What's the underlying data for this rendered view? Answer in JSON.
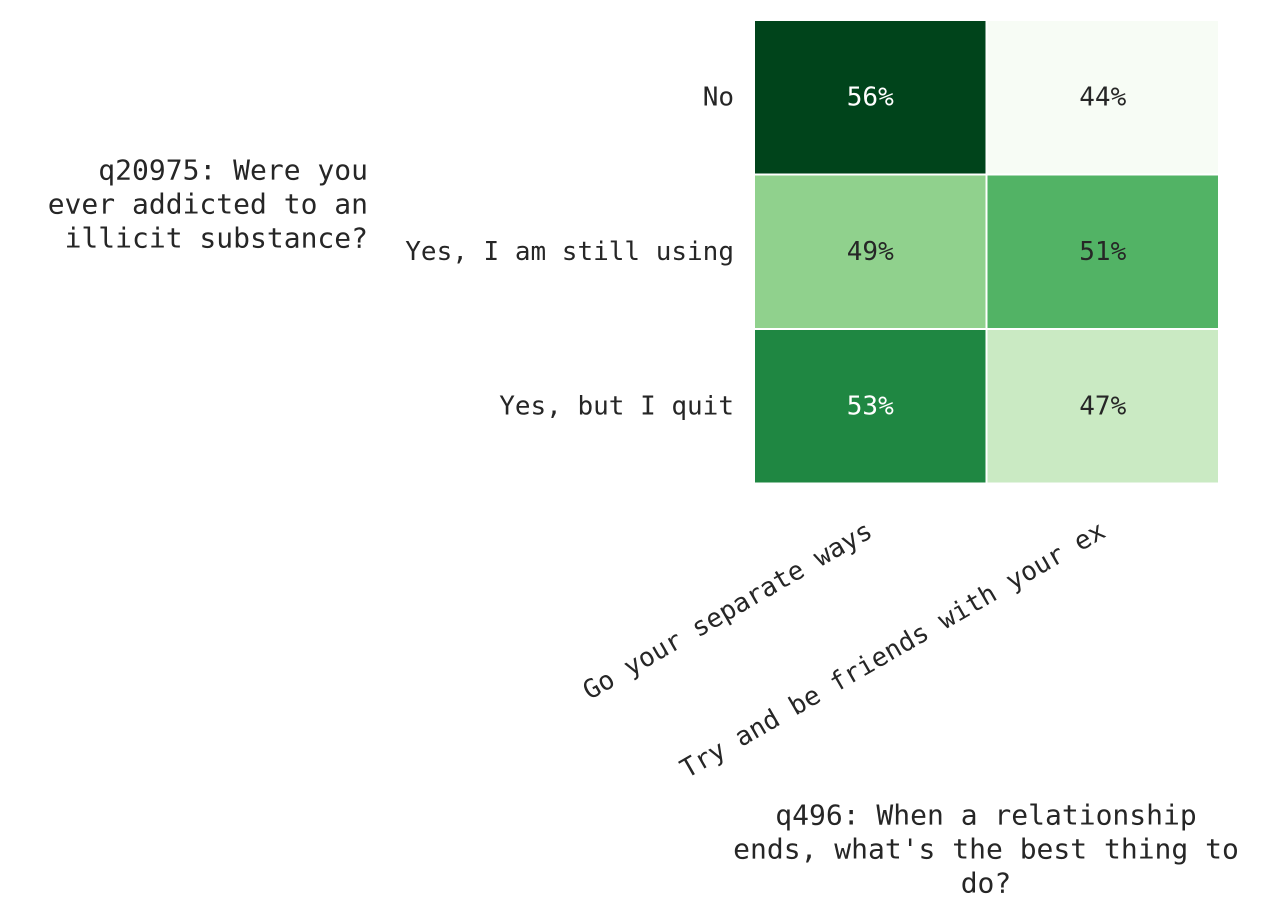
{
  "chart_data": {
    "type": "heatmap",
    "title": "",
    "xlabel": "q496: When a relationship ends, what's the best thing to do?",
    "xlabel_lines": [
      "q496: When a relationship",
      "ends, what's the best thing to",
      "do?"
    ],
    "ylabel": "q20975: Were you ever addicted to an illicit substance?",
    "ylabel_lines": [
      "q20975: Were you",
      "ever addicted to an",
      "illicit substance?"
    ],
    "x_categories": [
      "Go your separate ways",
      "Try and be friends with your ex"
    ],
    "y_categories": [
      "No",
      "Yes, I am still using",
      "Yes, but I quit"
    ],
    "values": [
      [
        56,
        44
      ],
      [
        49,
        51
      ],
      [
        53,
        47
      ]
    ],
    "cell_labels": [
      [
        "56%",
        "44%"
      ],
      [
        "49%",
        "51%"
      ],
      [
        "53%",
        "47%"
      ]
    ],
    "value_unit": "%",
    "colormap": "Greens",
    "colors": [
      [
        "#00441b",
        "#f7fcf5"
      ],
      [
        "#90d18d",
        "#52b365"
      ],
      [
        "#1f8742",
        "#caeac3"
      ]
    ],
    "text_colors": [
      [
        "#ffffff",
        "#262626"
      ],
      [
        "#262626",
        "#262626"
      ],
      [
        "#ffffff",
        "#262626"
      ]
    ],
    "grid": false,
    "legend": "none"
  }
}
